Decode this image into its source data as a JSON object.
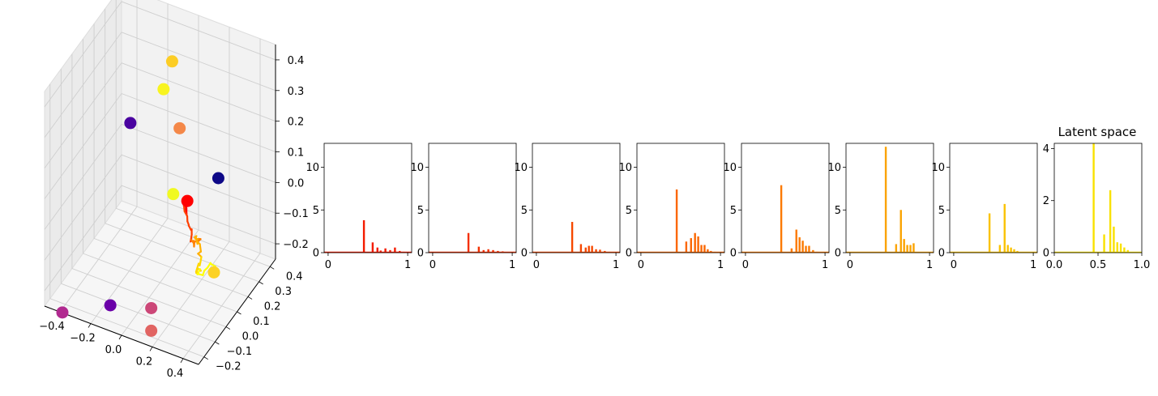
{
  "chart_data": [
    {
      "type": "scatter3d",
      "xticks": [
        "−0.4",
        "−0.2",
        "0.0",
        "0.2",
        "0.4"
      ],
      "yticks": [
        "−0.2",
        "−0.1",
        "0.0",
        "0.1",
        "0.2",
        "0.3",
        "0.4"
      ],
      "zticks": [
        "−0.2",
        "−0.1",
        "0.0",
        "0.1",
        "0.2",
        "0.3",
        "0.4"
      ],
      "points": [
        {
          "x": -0.1,
          "y": 0.35,
          "z": 0.33,
          "color": "#fccd25"
        },
        {
          "x": -0.12,
          "y": 0.3,
          "z": 0.26,
          "color": "#f8f420"
        },
        {
          "x": -0.3,
          "y": 0.25,
          "z": 0.14,
          "color": "#4a02a0"
        },
        {
          "x": -0.03,
          "y": 0.32,
          "z": 0.14,
          "color": "#f48849"
        },
        {
          "x": 0.25,
          "y": 0.28,
          "z": 0.05,
          "color": "#0d0887"
        },
        {
          "x": 0.0,
          "y": 0.22,
          "z": -0.02,
          "color": "#f0f921"
        },
        {
          "x": 0.12,
          "y": 0.18,
          "z": 0.0,
          "color": "#ff0000"
        },
        {
          "x": -0.42,
          "y": -0.2,
          "z": -0.28,
          "color": "#b12a90"
        },
        {
          "x": -0.18,
          "y": -0.1,
          "z": -0.26,
          "color": "#6a00a8"
        },
        {
          "x": 0.05,
          "y": -0.05,
          "z": -0.25,
          "color": "#cc4778"
        },
        {
          "x": 0.1,
          "y": -0.12,
          "z": -0.28,
          "color": "#e16462"
        },
        {
          "x": 0.35,
          "y": 0.1,
          "z": -0.15,
          "color": "#fcd225"
        }
      ],
      "trajectory_colors": [
        "#ff0000",
        "#ff4000",
        "#ff8000",
        "#ffb000",
        "#ffd700",
        "#ffff00"
      ]
    },
    {
      "type": "bar",
      "xticks": [
        "0",
        "1"
      ],
      "yticks": [
        "0",
        "5",
        "10"
      ],
      "xlim": [
        -0.05,
        1.05
      ],
      "ylim": [
        0,
        12.8
      ],
      "color": "#f41b00",
      "bars": [
        [
          0.45,
          3.8
        ],
        [
          0.56,
          1.2
        ],
        [
          0.62,
          0.6
        ],
        [
          0.66,
          0.25
        ],
        [
          0.72,
          0.5
        ],
        [
          0.78,
          0.3
        ],
        [
          0.84,
          0.6
        ],
        [
          0.9,
          0.2
        ],
        [
          0.95,
          0.1
        ]
      ]
    },
    {
      "type": "bar",
      "xticks": [
        "0",
        "1"
      ],
      "yticks": [
        "0",
        "5",
        "10"
      ],
      "xlim": [
        -0.05,
        1.05
      ],
      "ylim": [
        0,
        12.8
      ],
      "color": "#f42f00",
      "bars": [
        [
          0.45,
          2.3
        ],
        [
          0.58,
          0.7
        ],
        [
          0.64,
          0.3
        ],
        [
          0.7,
          0.4
        ],
        [
          0.76,
          0.3
        ],
        [
          0.82,
          0.2
        ],
        [
          0.88,
          0.15
        ]
      ]
    },
    {
      "type": "bar",
      "xticks": [
        "0",
        "1"
      ],
      "yticks": [
        "0",
        "5",
        "10"
      ],
      "xlim": [
        -0.05,
        1.05
      ],
      "ylim": [
        0,
        12.8
      ],
      "color": "#f64800",
      "bars": [
        [
          0.45,
          3.6
        ],
        [
          0.56,
          1.0
        ],
        [
          0.62,
          0.6
        ],
        [
          0.66,
          0.8
        ],
        [
          0.7,
          0.8
        ],
        [
          0.75,
          0.4
        ],
        [
          0.8,
          0.35
        ],
        [
          0.86,
          0.2
        ],
        [
          0.92,
          0.1
        ]
      ]
    },
    {
      "type": "bar",
      "xticks": [
        "0",
        "1"
      ],
      "yticks": [
        "0",
        "5",
        "10"
      ],
      "xlim": [
        -0.05,
        1.05
      ],
      "ylim": [
        0,
        12.8
      ],
      "color": "#fb6600",
      "bars": [
        [
          0.45,
          7.4
        ],
        [
          0.57,
          1.3
        ],
        [
          0.63,
          1.7
        ],
        [
          0.68,
          2.3
        ],
        [
          0.72,
          1.9
        ],
        [
          0.76,
          0.9
        ],
        [
          0.8,
          0.9
        ],
        [
          0.84,
          0.4
        ],
        [
          0.88,
          0.2
        ],
        [
          0.93,
          0.1
        ]
      ]
    },
    {
      "type": "bar",
      "xticks": [
        "0",
        "1"
      ],
      "yticks": [
        "0",
        "5",
        "10"
      ],
      "xlim": [
        -0.05,
        1.05
      ],
      "ylim": [
        0,
        12.8
      ],
      "color": "#fc7a00",
      "bars": [
        [
          0.45,
          7.9
        ],
        [
          0.58,
          0.5
        ],
        [
          0.64,
          2.7
        ],
        [
          0.68,
          1.8
        ],
        [
          0.72,
          1.4
        ],
        [
          0.76,
          0.8
        ],
        [
          0.8,
          0.8
        ],
        [
          0.85,
          0.3
        ],
        [
          0.9,
          0.1
        ]
      ]
    },
    {
      "type": "bar",
      "xticks": [
        "0",
        "1"
      ],
      "yticks": [
        "0",
        "5",
        "10"
      ],
      "xlim": [
        -0.05,
        1.05
      ],
      "ylim": [
        0,
        12.8
      ],
      "color": "#fba300",
      "bars": [
        [
          0.45,
          12.4
        ],
        [
          0.58,
          1.0
        ],
        [
          0.64,
          5.0
        ],
        [
          0.68,
          1.6
        ],
        [
          0.72,
          0.9
        ],
        [
          0.76,
          0.9
        ],
        [
          0.8,
          1.1
        ]
      ]
    },
    {
      "type": "bar",
      "xticks": [
        "0",
        "1"
      ],
      "yticks": [
        "0",
        "5",
        "10"
      ],
      "xlim": [
        -0.05,
        1.05
      ],
      "ylim": [
        0,
        12.8
      ],
      "color": "#fac200",
      "bars": [
        [
          0.45,
          4.6
        ],
        [
          0.58,
          0.9
        ],
        [
          0.64,
          5.7
        ],
        [
          0.68,
          0.9
        ],
        [
          0.72,
          0.6
        ],
        [
          0.76,
          0.4
        ],
        [
          0.8,
          0.2
        ]
      ]
    },
    {
      "type": "bar",
      "title": "Latent space",
      "xticks": [
        "0.0",
        "0.5",
        "1.0"
      ],
      "yticks": [
        "0",
        "2",
        "4"
      ],
      "xlim": [
        0,
        1
      ],
      "ylim": [
        0,
        4.2
      ],
      "color": "#f9e100",
      "bars": [
        [
          0.45,
          4.2
        ],
        [
          0.57,
          0.7
        ],
        [
          0.64,
          2.4
        ],
        [
          0.68,
          1.0
        ],
        [
          0.72,
          0.4
        ],
        [
          0.76,
          0.35
        ],
        [
          0.8,
          0.2
        ],
        [
          0.84,
          0.1
        ]
      ]
    }
  ]
}
